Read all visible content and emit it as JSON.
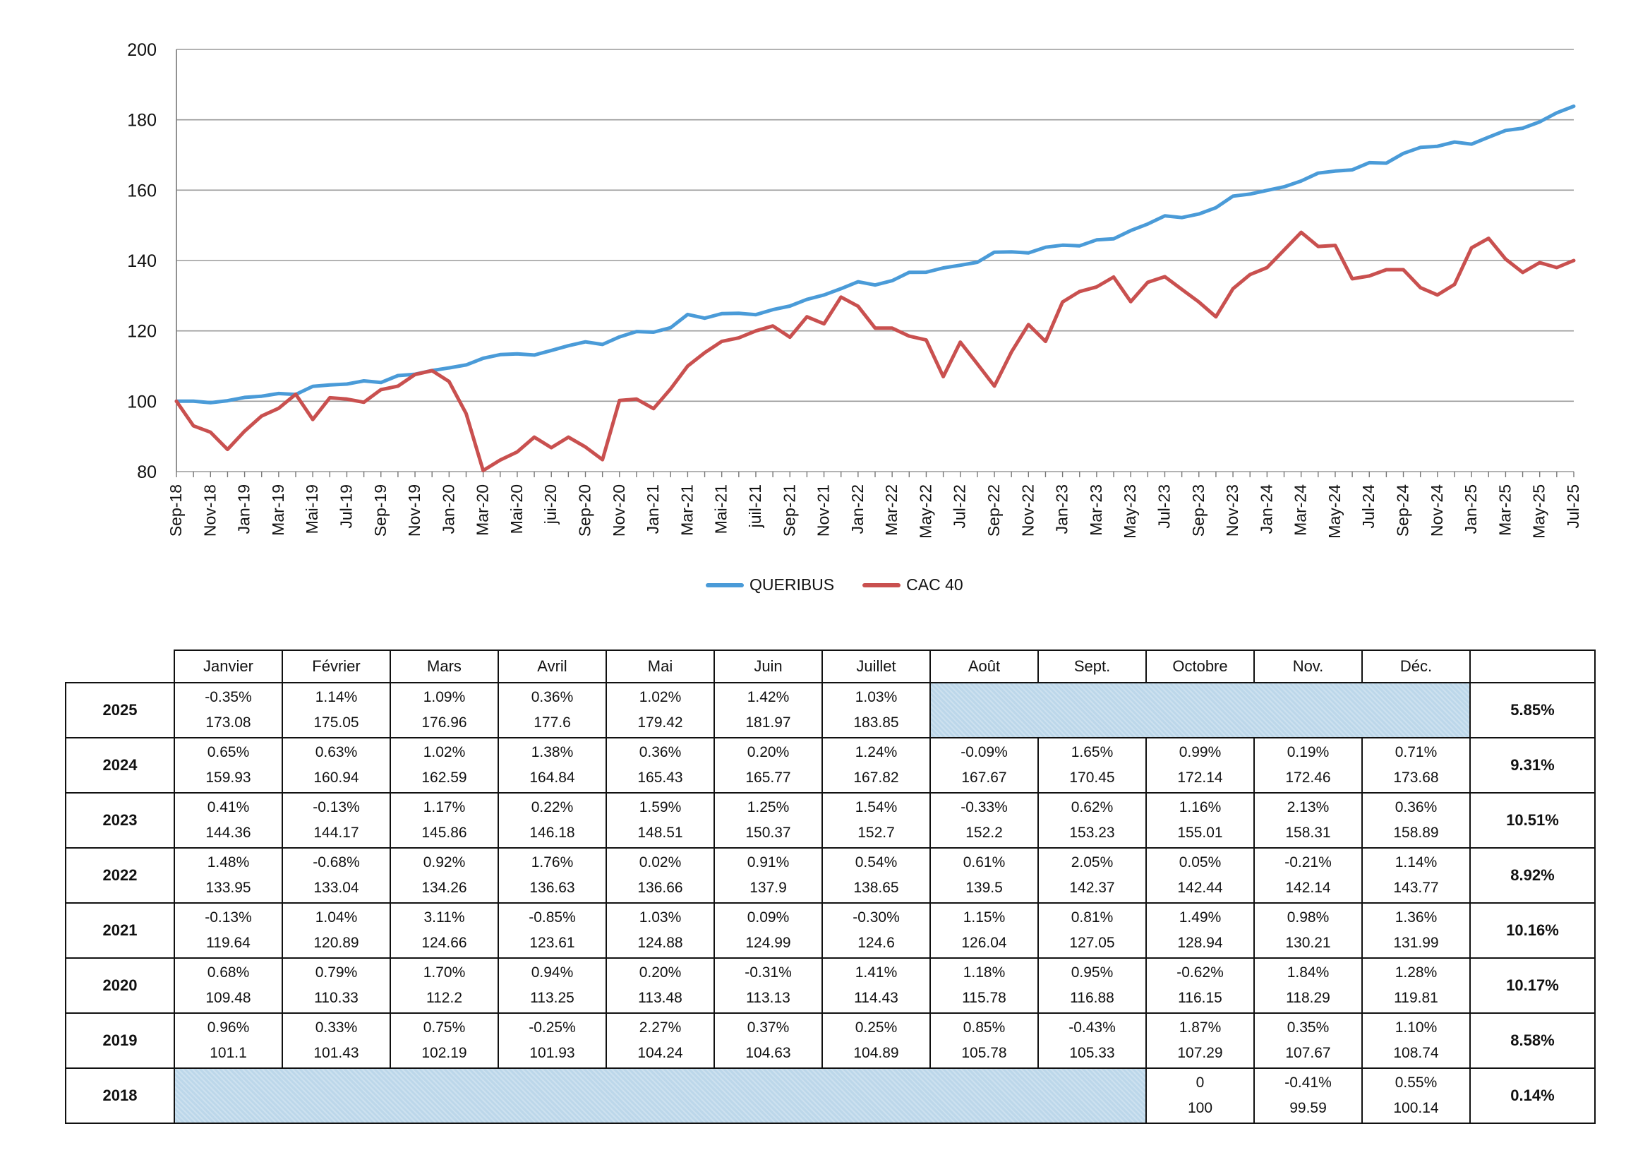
{
  "chart_data": {
    "type": "line",
    "ylim": [
      80,
      200
    ],
    "yticks": [
      80,
      100,
      120,
      140,
      160,
      180,
      200
    ],
    "grid": true,
    "legend_position": "bottom",
    "x": [
      "Sep-18",
      "Oct-18",
      "Nov-18",
      "Dec-18",
      "Jan-19",
      "Feb-19",
      "Mar-19",
      "Apr-19",
      "Mai-19",
      "Jun-19",
      "Jul-19",
      "Aug-19",
      "Sep-19",
      "Oct-19",
      "Nov-19",
      "Dec-19",
      "Jan-20",
      "Feb-20",
      "Mar-20",
      "Apr-20",
      "Mai-20",
      "Jun-20",
      "jui-20",
      "Aug-20",
      "Sep-20",
      "Oct-20",
      "Nov-20",
      "Dec-20",
      "Jan-21",
      "Feb-21",
      "Mar-21",
      "Apr-21",
      "Mai-21",
      "Jun-21",
      "juil-21",
      "Aug-21",
      "Sep-21",
      "Oct-21",
      "Nov-21",
      "Dec-21",
      "Jan-22",
      "Feb-22",
      "Mar-22",
      "Apr-22",
      "May-22",
      "Jun-22",
      "Jul-22",
      "Aug-22",
      "Sep-22",
      "Oct-22",
      "Nov-22",
      "Dec-22",
      "Jan-23",
      "Feb-23",
      "Mar-23",
      "Apr-23",
      "May-23",
      "Jun-23",
      "Jul-23",
      "Aug-23",
      "Sep-23",
      "Oct-23",
      "Nov-23",
      "Dec-23",
      "Jan-24",
      "Feb-24",
      "Mar-24",
      "Apr-24",
      "May-24",
      "Jun-24",
      "Jul-24",
      "Aug-24",
      "Sep-24",
      "Oct-24",
      "Nov-24",
      "Dec-24",
      "Jan-25",
      "Feb-25",
      "Mar-25",
      "Apr-25",
      "May-25",
      "Jun-25",
      "Jul-25"
    ],
    "xtick_labels": [
      "Sep-18",
      "Nov-18",
      "Jan-19",
      "Mar-19",
      "Mai-19",
      "Jul-19",
      "Sep-19",
      "Nov-19",
      "Jan-20",
      "Mar-20",
      "Mai-20",
      "jui-20",
      "Sep-20",
      "Nov-20",
      "Jan-21",
      "Mar-21",
      "Mai-21",
      "juil-21",
      "Sep-21",
      "Nov-21",
      "Jan-22",
      "Mar-22",
      "May-22",
      "Jul-22",
      "Sep-22",
      "Nov-22",
      "Jan-23",
      "Mar-23",
      "May-23",
      "Jul-23",
      "Sep-23",
      "Nov-23",
      "Jan-24",
      "Mar-24",
      "May-24",
      "Jul-24",
      "Sep-24",
      "Nov-24",
      "Jan-25",
      "Mar-25",
      "May-25",
      "Jul-25"
    ],
    "series": [
      {
        "name": "QUERIBUS",
        "color": "#4a9bd8",
        "values": [
          100,
          100,
          99.59,
          100.14,
          101.1,
          101.43,
          102.19,
          101.93,
          104.24,
          104.63,
          104.89,
          105.78,
          105.33,
          107.29,
          107.67,
          108.74,
          109.48,
          110.33,
          112.2,
          113.25,
          113.48,
          113.13,
          114.43,
          115.78,
          116.88,
          116.15,
          118.29,
          119.81,
          119.64,
          120.89,
          124.66,
          123.61,
          124.88,
          124.99,
          124.6,
          126.04,
          127.05,
          128.94,
          130.21,
          131.99,
          133.95,
          133.04,
          134.26,
          136.63,
          136.66,
          137.9,
          138.65,
          139.5,
          142.37,
          142.44,
          142.14,
          143.77,
          144.36,
          144.17,
          145.86,
          146.18,
          148.51,
          150.37,
          152.7,
          152.2,
          153.23,
          155.01,
          158.31,
          158.89,
          159.93,
          160.94,
          162.59,
          164.84,
          165.43,
          165.77,
          167.82,
          167.67,
          170.45,
          172.14,
          172.46,
          173.68,
          173.08,
          175.05,
          176.96,
          177.6,
          179.42,
          181.97,
          183.85
        ]
      },
      {
        "name": "CAC 40",
        "color": "#c9504f",
        "values": [
          100,
          93,
          91.2,
          86.3,
          91.5,
          95.8,
          98,
          102,
          94.8,
          101,
          100.6,
          99.7,
          103.3,
          104.3,
          107.6,
          108.7,
          105.6,
          96.5,
          80.3,
          83.3,
          85.6,
          89.8,
          86.8,
          89.8,
          87,
          83.4,
          100.2,
          100.6,
          97.9,
          103.5,
          110,
          113.8,
          117,
          118,
          120,
          121.4,
          118.2,
          124,
          122,
          129.6,
          127,
          120.8,
          120.8,
          118.5,
          117.4,
          107,
          116.8,
          110.6,
          104.3,
          114,
          121.8,
          117,
          128.2,
          131.2,
          132.5,
          135.3,
          128.3,
          133.8,
          135.4,
          131.8,
          128.2,
          124,
          132,
          136,
          138,
          143,
          148,
          144,
          144.3,
          134.8,
          135.6,
          137.4,
          137.4,
          132.3,
          130.2,
          133.2,
          143.6,
          146.3,
          140.4,
          136.6,
          139.4,
          138,
          140
        ]
      }
    ]
  },
  "table": {
    "months": [
      "Janvier",
      "Février",
      "Mars",
      "Avril",
      "Mai",
      "Juin",
      "Juillet",
      "Août",
      "Sept.",
      "Octobre",
      "Nov.",
      "Déc."
    ],
    "rows": [
      {
        "year": "2025",
        "cells": [
          [
            "-0.35%",
            "173.08"
          ],
          [
            "1.14%",
            "175.05"
          ],
          [
            "1.09%",
            "176.96"
          ],
          [
            "0.36%",
            "177.6"
          ],
          [
            "1.02%",
            "179.42"
          ],
          [
            "1.42%",
            "181.97"
          ],
          [
            "1.03%",
            "183.85"
          ]
        ],
        "blank_after": 5,
        "total": "5.85%"
      },
      {
        "year": "2024",
        "cells": [
          [
            "0.65%",
            "159.93"
          ],
          [
            "0.63%",
            "160.94"
          ],
          [
            "1.02%",
            "162.59"
          ],
          [
            "1.38%",
            "164.84"
          ],
          [
            "0.36%",
            "165.43"
          ],
          [
            "0.20%",
            "165.77"
          ],
          [
            "1.24%",
            "167.82"
          ],
          [
            "-0.09%",
            "167.67"
          ],
          [
            "1.65%",
            "170.45"
          ],
          [
            "0.99%",
            "172.14"
          ],
          [
            "0.19%",
            "172.46"
          ],
          [
            "0.71%",
            "173.68"
          ]
        ],
        "total": "9.31%"
      },
      {
        "year": "2023",
        "cells": [
          [
            "0.41%",
            "144.36"
          ],
          [
            "-0.13%",
            "144.17"
          ],
          [
            "1.17%",
            "145.86"
          ],
          [
            "0.22%",
            "146.18"
          ],
          [
            "1.59%",
            "148.51"
          ],
          [
            "1.25%",
            "150.37"
          ],
          [
            "1.54%",
            "152.7"
          ],
          [
            "-0.33%",
            "152.2"
          ],
          [
            "0.62%",
            "153.23"
          ],
          [
            "1.16%",
            "155.01"
          ],
          [
            "2.13%",
            "158.31"
          ],
          [
            "0.36%",
            "158.89"
          ]
        ],
        "total": "10.51%"
      },
      {
        "year": "2022",
        "cells": [
          [
            "1.48%",
            "133.95"
          ],
          [
            "-0.68%",
            "133.04"
          ],
          [
            "0.92%",
            "134.26"
          ],
          [
            "1.76%",
            "136.63"
          ],
          [
            "0.02%",
            "136.66"
          ],
          [
            "0.91%",
            "137.9"
          ],
          [
            "0.54%",
            "138.65"
          ],
          [
            "0.61%",
            "139.5"
          ],
          [
            "2.05%",
            "142.37"
          ],
          [
            "0.05%",
            "142.44"
          ],
          [
            "-0.21%",
            "142.14"
          ],
          [
            "1.14%",
            "143.77"
          ]
        ],
        "total": "8.92%"
      },
      {
        "year": "2021",
        "cells": [
          [
            "-0.13%",
            "119.64"
          ],
          [
            "1.04%",
            "120.89"
          ],
          [
            "3.11%",
            "124.66"
          ],
          [
            "-0.85%",
            "123.61"
          ],
          [
            "1.03%",
            "124.88"
          ],
          [
            "0.09%",
            "124.99"
          ],
          [
            "-0.30%",
            "124.6"
          ],
          [
            "1.15%",
            "126.04"
          ],
          [
            "0.81%",
            "127.05"
          ],
          [
            "1.49%",
            "128.94"
          ],
          [
            "0.98%",
            "130.21"
          ],
          [
            "1.36%",
            "131.99"
          ]
        ],
        "total": "10.16%"
      },
      {
        "year": "2020",
        "cells": [
          [
            "0.68%",
            "109.48"
          ],
          [
            "0.79%",
            "110.33"
          ],
          [
            "1.70%",
            "112.2"
          ],
          [
            "0.94%",
            "113.25"
          ],
          [
            "0.20%",
            "113.48"
          ],
          [
            "-0.31%",
            "113.13"
          ],
          [
            "1.41%",
            "114.43"
          ],
          [
            "1.18%",
            "115.78"
          ],
          [
            "0.95%",
            "116.88"
          ],
          [
            "-0.62%",
            "116.15"
          ],
          [
            "1.84%",
            "118.29"
          ],
          [
            "1.28%",
            "119.81"
          ]
        ],
        "total": "10.17%"
      },
      {
        "year": "2019",
        "cells": [
          [
            "0.96%",
            "101.1"
          ],
          [
            "0.33%",
            "101.43"
          ],
          [
            "0.75%",
            "102.19"
          ],
          [
            "-0.25%",
            "101.93"
          ],
          [
            "2.27%",
            "104.24"
          ],
          [
            "0.37%",
            "104.63"
          ],
          [
            "0.25%",
            "104.89"
          ],
          [
            "0.85%",
            "105.78"
          ],
          [
            "-0.43%",
            "105.33"
          ],
          [
            "1.87%",
            "107.29"
          ],
          [
            "0.35%",
            "107.67"
          ],
          [
            "1.10%",
            "108.74"
          ]
        ],
        "total": "8.58%"
      },
      {
        "year": "2018",
        "blank_before": 9,
        "cells": [
          [
            "0",
            "100"
          ],
          [
            "-0.41%",
            "99.59"
          ],
          [
            "0.55%",
            "100.14"
          ]
        ],
        "total": "0.14%"
      }
    ]
  }
}
